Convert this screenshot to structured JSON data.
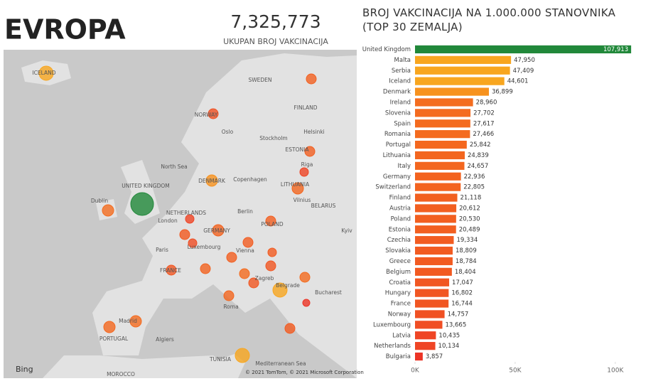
{
  "header": {
    "title": "EVROPA"
  },
  "kpi": {
    "value": "7,325,773",
    "caption": "UKUPAN BROJ VAKCINACIJA"
  },
  "map": {
    "provider": "Bing",
    "attribution": "© 2021 TomTom, © 2021 Microsoft Corporation",
    "labels": [
      "ICELAND",
      "NORWAY",
      "SWEDEN",
      "FINLAND",
      "Oslo",
      "Stockholm",
      "Helsinki",
      "ESTONIA",
      "Riga",
      "LITHUANIA",
      "Vilnius",
      "North Sea",
      "DENMARK",
      "Copenhagen",
      "UNITED KINGDOM",
      "Dublin",
      "London",
      "NETHERLANDS",
      "Berlin",
      "POLAND",
      "GERMANY",
      "BELARUS",
      "Kyiv",
      "Paris",
      "Luxembourg",
      "FRANCE",
      "Vienna",
      "Zagreb",
      "Belgrade",
      "Bucharest",
      "Roma",
      "Madrid",
      "PORTUGAL",
      "Algiers",
      "TUNISIA",
      "MOROCCO",
      "Mediterranean Sea"
    ]
  },
  "chart_data": [
    {
      "type": "bar",
      "orientation": "horizontal",
      "title": "BROJ VAKCINACIJA NA 1.000.000 STANOVNIKA (TOP 30 ZEMALJA)",
      "categories": [
        "United Kingdom",
        "Malta",
        "Serbia",
        "Iceland",
        "Denmark",
        "Ireland",
        "Slovenia",
        "Spain",
        "Romania",
        "Portugal",
        "Lithuania",
        "Italy",
        "Germany",
        "Switzerland",
        "Finland",
        "Austria",
        "Poland",
        "Estonia",
        "Czechia",
        "Slovakia",
        "Greece",
        "Belgium",
        "Croatia",
        "Hungary",
        "France",
        "Norway",
        "Luxembourg",
        "Latvia",
        "Netherlands",
        "Bulgaria"
      ],
      "values": [
        107913,
        47950,
        47409,
        44601,
        36899,
        28960,
        27702,
        27617,
        27466,
        25842,
        24839,
        24657,
        22936,
        22805,
        21118,
        20612,
        20530,
        20489,
        19334,
        18809,
        18784,
        18404,
        17047,
        16802,
        16744,
        14757,
        13665,
        10435,
        10134,
        3857
      ],
      "value_labels": [
        "107,913",
        "47,950",
        "47,409",
        "44,601",
        "36,899",
        "28,960",
        "27,702",
        "27,617",
        "27,466",
        "25,842",
        "24,839",
        "24,657",
        "22,936",
        "22,805",
        "21,118",
        "20,612",
        "20,530",
        "20,489",
        "19,334",
        "18,809",
        "18,784",
        "18,404",
        "17,047",
        "16,802",
        "16,744",
        "14,757",
        "13,665",
        "10,435",
        "10,134",
        "3,857"
      ],
      "colors": [
        "#21883a",
        "#f8a61f",
        "#f8a61f",
        "#f8a61f",
        "#f7921e",
        "#f46d1f",
        "#f46b1f",
        "#f46b1f",
        "#f46b1f",
        "#f4681f",
        "#f3661f",
        "#f3661f",
        "#f3631f",
        "#f3631f",
        "#f26020",
        "#f25f20",
        "#f25f20",
        "#f25f20",
        "#f25c21",
        "#f25b21",
        "#f25b21",
        "#f25a21",
        "#f15722",
        "#f15622",
        "#f15622",
        "#f05123",
        "#f04e24",
        "#ef4525",
        "#ef4525",
        "#ec3426"
      ],
      "xlim": [
        0,
        110000
      ],
      "xticks": [
        {
          "value": 0,
          "label": "0K"
        },
        {
          "value": 50000,
          "label": "50K"
        },
        {
          "value": 100000,
          "label": "100K"
        }
      ]
    }
  ]
}
